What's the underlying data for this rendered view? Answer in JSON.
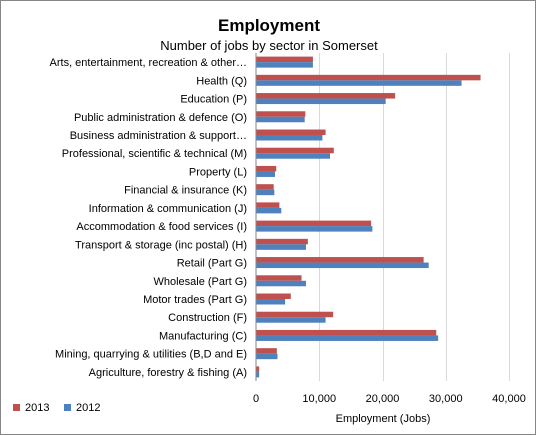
{
  "chart_data": {
    "type": "bar",
    "orientation": "horizontal",
    "title": "Employment",
    "subtitle": "Number of jobs by sector in Somerset",
    "xlabel": "Employment (Jobs)",
    "ylabel": "",
    "xlim": [
      0,
      40000
    ],
    "x_ticks": [
      0,
      10000,
      20000,
      30000,
      40000
    ],
    "x_tick_labels": [
      "0",
      "10,000",
      "20,000",
      "30,000",
      "40,000"
    ],
    "grid": true,
    "legend_position": "bottom-left",
    "categories": [
      "Arts, entertainment, recreation & other…",
      "Health (Q)",
      "Education (P)",
      "Public administration & defence (O)",
      "Business administration & support…",
      "Professional, scientific & technical (M)",
      "Property (L)",
      "Financial & insurance (K)",
      "Information & communication (J)",
      "Accommodation & food services (I)",
      "Transport & storage (inc postal) (H)",
      "Retail (Part G)",
      "Wholesale (Part G)",
      "Motor trades (Part G)",
      "Construction (F)",
      "Manufacturing (C)",
      "Mining, quarrying & utilities (B,D and E)",
      "Agriculture, forestry & fishing (A)"
    ],
    "series": [
      {
        "name": "2013",
        "color": "#C0504D",
        "values": [
          9000,
          35500,
          22000,
          7800,
          11000,
          12300,
          3200,
          2800,
          3700,
          18200,
          8200,
          26500,
          7200,
          5500,
          12200,
          28500,
          3300,
          500
        ]
      },
      {
        "name": "2012",
        "color": "#4F81BD",
        "values": [
          9000,
          32500,
          20500,
          7700,
          10500,
          11700,
          3000,
          2900,
          4000,
          18400,
          7900,
          27300,
          7900,
          4600,
          11000,
          28800,
          3400,
          500
        ]
      }
    ],
    "legend_order": [
      "2013",
      "2012"
    ]
  }
}
